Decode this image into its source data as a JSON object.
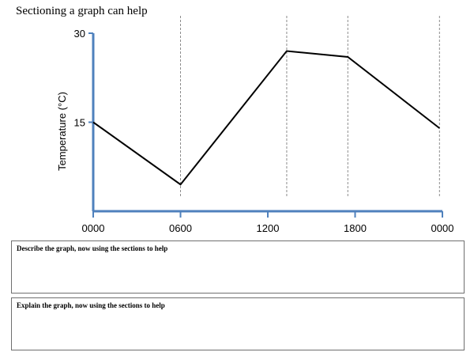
{
  "heading": "Sectioning  a graph can help",
  "chart_data": {
    "type": "line",
    "ylabel": "Temperature (°C)",
    "xlabel": "",
    "y_ticks": [
      15,
      30
    ],
    "ylim": [
      0,
      30
    ],
    "x_tick_labels": [
      "0000",
      "0600",
      "1200",
      "1800",
      "0000"
    ],
    "x_tick_hours": [
      0,
      6,
      12,
      18,
      24
    ],
    "xlim_hours": [
      0,
      24
    ],
    "section_hours": [
      6,
      13.3,
      17.5,
      23.8
    ],
    "series": [
      {
        "x_hours": [
          0,
          6,
          13.3,
          17.5,
          23.8
        ],
        "values": [
          15,
          4.5,
          27,
          26,
          14
        ]
      }
    ],
    "colors": {
      "axis": "#4f81bd",
      "line": "#000000",
      "section": "#8c8c8c"
    }
  },
  "boxes": {
    "describe": "Describe the graph, now using the sections to help",
    "explain": "Explain the graph, now using the sections to help"
  }
}
